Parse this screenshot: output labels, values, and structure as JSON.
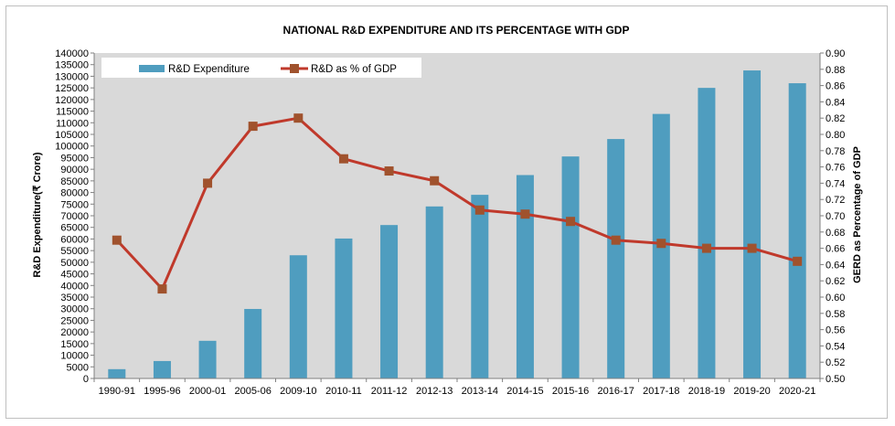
{
  "chart_data": {
    "type": "bar+line",
    "title": "NATIONAL R&D EXPENDITURE AND ITS PERCENTAGE WITH GDP",
    "ylabel_left": "R&D Expenditure(₹ Crore)",
    "ylabel_right": "GERD as Percentage of GDP",
    "categories": [
      "1990-91",
      "1995-96",
      "2000-01",
      "2005-06",
      "2009-10",
      "2010-11",
      "2011-12",
      "2012-13",
      "2013-14",
      "2014-15",
      "2015-16",
      "2016-17",
      "2017-18",
      "2018-19",
      "2019-20",
      "2020-21"
    ],
    "series": [
      {
        "name": "R&D Expenditure",
        "type": "bar",
        "axis": "left",
        "color": "#4F9DBF",
        "values": [
          4000,
          7500,
          16200,
          29900,
          53000,
          60200,
          66000,
          74000,
          79000,
          87500,
          95500,
          103000,
          113800,
          125000,
          132500,
          127000
        ]
      },
      {
        "name": "R&D as % of GDP",
        "type": "line",
        "axis": "right",
        "color": "#C0392B",
        "marker_color": "#A0522D",
        "values": [
          0.67,
          0.61,
          0.74,
          0.81,
          0.82,
          0.77,
          0.755,
          0.743,
          0.707,
          0.702,
          0.693,
          0.67,
          0.666,
          0.66,
          0.66,
          0.644
        ]
      }
    ],
    "ylim_left": [
      0,
      140000
    ],
    "ytick_step_left": 5000,
    "ylim_right": [
      0.5,
      0.9
    ],
    "ytick_step_right": 0.02,
    "grid": false,
    "legend": "top-left",
    "plot_background": "#d9d9d9"
  }
}
